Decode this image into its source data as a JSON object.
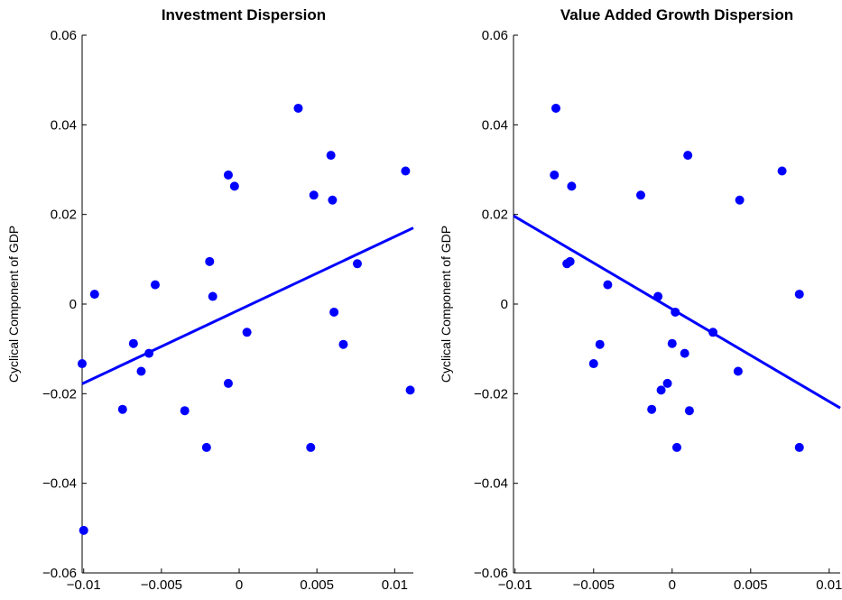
{
  "chart_data": [
    {
      "type": "scatter",
      "title": "Investment Dispersion",
      "xlabel": "",
      "ylabel": "Cyclical Component of GDP",
      "xlim": [
        -0.0101,
        0.0112
      ],
      "ylim": [
        -0.06,
        0.06
      ],
      "x_ticks": [
        -0.01,
        -0.005,
        0,
        0.005,
        0.01
      ],
      "x_tick_labels": [
        "−0.01",
        "−0.005",
        "0",
        "0.005",
        "0.01"
      ],
      "y_ticks": [
        -0.06,
        -0.04,
        -0.02,
        0,
        0.02,
        0.04,
        0.06
      ],
      "y_tick_labels": [
        "−0.06",
        "−0.04",
        "−0.02",
        "0",
        "0.02",
        "0.04",
        "0.06"
      ],
      "grid": false,
      "color": "#0000ff",
      "points": [
        [
          -0.0101,
          -0.0133
        ],
        [
          -0.01,
          -0.0505
        ],
        [
          -0.0093,
          0.0022
        ],
        [
          -0.0075,
          -0.0235
        ],
        [
          -0.0068,
          -0.0088
        ],
        [
          -0.0063,
          -0.015
        ],
        [
          -0.0058,
          -0.011
        ],
        [
          -0.0054,
          0.0043
        ],
        [
          -0.0035,
          -0.0238
        ],
        [
          -0.0021,
          -0.032
        ],
        [
          -0.0019,
          0.0095
        ],
        [
          -0.0017,
          0.0017
        ],
        [
          -0.0007,
          0.0288
        ],
        [
          -0.0007,
          -0.0177
        ],
        [
          -0.0003,
          0.0263
        ],
        [
          0.0005,
          -0.0063
        ],
        [
          0.0038,
          0.0437
        ],
        [
          0.0046,
          -0.032
        ],
        [
          0.0048,
          0.0243
        ],
        [
          0.0059,
          0.0332
        ],
        [
          0.006,
          0.0232
        ],
        [
          0.0061,
          -0.0018
        ],
        [
          0.0067,
          -0.009
        ],
        [
          0.0076,
          0.009
        ],
        [
          0.0107,
          0.0297
        ],
        [
          0.011,
          -0.0192
        ]
      ],
      "fit_line": [
        [
          -0.0101,
          -0.0178
        ],
        [
          0.0112,
          0.017
        ]
      ]
    },
    {
      "type": "scatter",
      "title": "Value Added Growth Dispersion",
      "xlabel": "",
      "ylabel": "Cyclical Component of GDP",
      "xlim": [
        -0.0101,
        0.0107
      ],
      "ylim": [
        -0.06,
        0.06
      ],
      "x_ticks": [
        -0.01,
        -0.005,
        0,
        0.005,
        0.01
      ],
      "x_tick_labels": [
        "−0.01",
        "−0.005",
        "0",
        "0.005",
        "0.01"
      ],
      "y_ticks": [
        -0.06,
        -0.04,
        -0.02,
        0,
        0.02,
        0.04,
        0.06
      ],
      "y_tick_labels": [
        "−0.06",
        "−0.04",
        "−0.02",
        "0",
        "0.02",
        "0.04",
        "0.06"
      ],
      "grid": false,
      "color": "#0000ff",
      "points": [
        [
          -0.0074,
          0.0437
        ],
        [
          -0.0075,
          0.0288
        ],
        [
          -0.0064,
          0.0263
        ],
        [
          -0.0067,
          0.009
        ],
        [
          -0.0065,
          0.0095
        ],
        [
          -0.0041,
          0.0043
        ],
        [
          -0.0046,
          -0.009
        ],
        [
          -0.005,
          -0.0133
        ],
        [
          -0.002,
          0.0243
        ],
        [
          -0.0013,
          -0.0235
        ],
        [
          -0.0009,
          0.0017
        ],
        [
          -0.0007,
          -0.0192
        ],
        [
          -0.0003,
          -0.0177
        ],
        [
          0.0,
          -0.0088
        ],
        [
          0.0002,
          -0.0018
        ],
        [
          0.0003,
          -0.032
        ],
        [
          0.0008,
          -0.011
        ],
        [
          0.001,
          0.0332
        ],
        [
          0.0011,
          -0.0238
        ],
        [
          0.0026,
          -0.0063
        ],
        [
          0.0042,
          -0.015
        ],
        [
          0.0043,
          0.0232
        ],
        [
          0.007,
          0.0297
        ],
        [
          0.0081,
          0.0022
        ],
        [
          0.0081,
          -0.032
        ]
      ],
      "fit_line": [
        [
          -0.0101,
          0.0197
        ],
        [
          0.0107,
          -0.0232
        ]
      ]
    }
  ]
}
